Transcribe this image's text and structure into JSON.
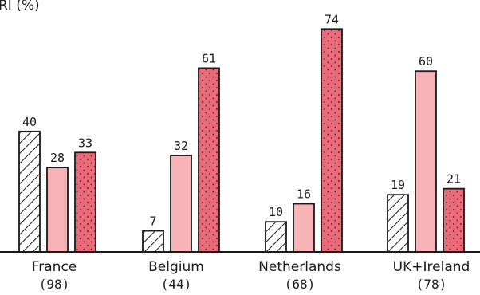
{
  "chart_data": {
    "type": "bar",
    "title": "RI (%)",
    "categories": [
      "France",
      "Belgium",
      "Netherlands",
      "UK+Ireland"
    ],
    "category_counts": [
      "(98)",
      "(44)",
      "(68)",
      "(78)"
    ],
    "ylim": [
      0,
      80
    ],
    "grid": false,
    "series": [
      {
        "values": [
          40,
          7,
          10,
          19
        ],
        "fill": "hatched",
        "color": "#ffffff"
      },
      {
        "values": [
          28,
          32,
          16,
          60
        ],
        "fill": "solid",
        "color": "#f7b3b6"
      },
      {
        "values": [
          33,
          61,
          74,
          21
        ],
        "fill": "dotted",
        "color": "#ea6a79"
      }
    ]
  }
}
